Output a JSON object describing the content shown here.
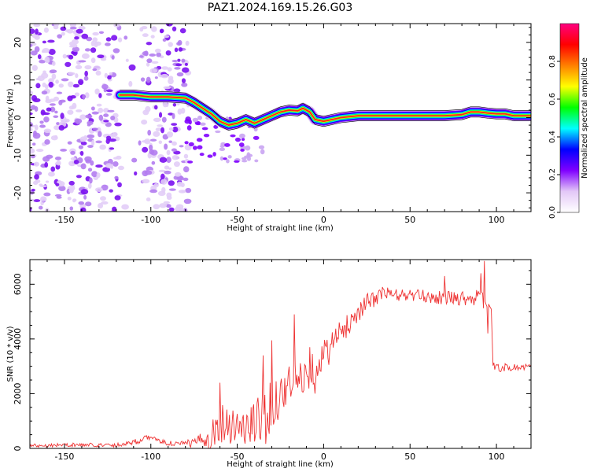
{
  "title": "PAZ1.2024.169.15.26.G03",
  "colors": {
    "snr_line": "#ee3333",
    "ridge_core": "#ff2020",
    "noise_scatter": "#8a2be2"
  },
  "chart_data": [
    {
      "type": "heatmap",
      "title": "PAZ1.2024.169.15.26.G03",
      "xlabel": "Height of straight line (km)",
      "ylabel": "Frequency (Hz)",
      "xlim": [
        -170,
        120
      ],
      "ylim": [
        -25,
        25
      ],
      "x_ticks": [
        -150,
        -100,
        -50,
        0,
        50,
        100
      ],
      "y_ticks": [
        -20,
        -10,
        0,
        10,
        20
      ],
      "ridge": {
        "x": [
          -118,
          -110,
          -100,
          -90,
          -80,
          -75,
          -70,
          -65,
          -60,
          -55,
          -50,
          -45,
          -40,
          -35,
          -30,
          -25,
          -20,
          -15,
          -12,
          -8,
          -5,
          0,
          5,
          10,
          20,
          30,
          40,
          50,
          60,
          70,
          80,
          85,
          90,
          95,
          100,
          105,
          110,
          115,
          120
        ],
        "y": [
          6,
          6,
          5.5,
          5.5,
          5.2,
          4,
          2.5,
          1,
          -1,
          -2,
          -1.5,
          -0.5,
          -1.5,
          -0.5,
          0.5,
          1.5,
          2,
          1.8,
          2.5,
          1.5,
          -0.5,
          -1,
          -0.5,
          0,
          0.5,
          0.5,
          0.5,
          0.5,
          0.5,
          0.5,
          0.8,
          1.5,
          1.5,
          1.2,
          1,
          1,
          0.5,
          0.5,
          0.5
        ]
      },
      "noise_x_range": [
        -170,
        -78
      ],
      "colorbar": {
        "label": "Normalized spectral amplitude",
        "range": [
          0,
          1
        ],
        "ticks": [
          "0.0",
          "0.2",
          "0.4",
          "0.6",
          "0.8"
        ],
        "colors": [
          "#ffffff",
          "#e3c8f7",
          "#8000ff",
          "#0000ff",
          "#00ffff",
          "#00ff00",
          "#ffff00",
          "#ff8000",
          "#ff0000",
          "#ff0080"
        ]
      }
    },
    {
      "type": "line",
      "xlabel": "Height of straight line (km)",
      "ylabel": "SNR (10 * v/v)",
      "xlim": [
        -170,
        120
      ],
      "ylim": [
        0,
        6900
      ],
      "x_ticks": [
        -150,
        -100,
        -50,
        0,
        50,
        100
      ],
      "y_ticks": [
        0,
        2000,
        4000,
        6000
      ],
      "series": [
        {
          "trend_x": [
            -170,
            -150,
            -120,
            -105,
            -100,
            -95,
            -85,
            -75,
            -70,
            -65,
            -60,
            -55,
            -50,
            -45,
            -40,
            -35,
            -30,
            -25,
            -20,
            -15,
            -10,
            -5,
            0,
            5,
            10,
            15,
            20,
            25,
            30,
            35,
            40,
            50,
            60,
            70,
            80,
            90,
            95,
            97,
            98,
            100,
            110,
            120
          ],
          "trend_y": [
            100,
            130,
            120,
            300,
            450,
            250,
            150,
            200,
            350,
            500,
            900,
            1000,
            800,
            700,
            900,
            1100,
            1500,
            2000,
            2300,
            2500,
            2700,
            3000,
            3400,
            3800,
            4200,
            4600,
            5000,
            5300,
            5500,
            5700,
            5600,
            5600,
            5550,
            5500,
            5500,
            5500,
            5300,
            5200,
            3000,
            2950,
            2950,
            3000
          ],
          "spread_x": [
            -170,
            -120,
            -105,
            -95,
            -80,
            -70,
            -65,
            -55,
            -45,
            -35,
            -25,
            -15,
            -5,
            5,
            15,
            25,
            35,
            50,
            70,
            90,
            96,
            98,
            120
          ],
          "spread": [
            70,
            70,
            120,
            80,
            120,
            250,
            700,
            800,
            700,
            1100,
            800,
            700,
            600,
            600,
            400,
            350,
            250,
            220,
            250,
            300,
            350,
            150,
            150
          ],
          "spikes": [
            [
              93,
              6850
            ],
            [
              91,
              6400
            ],
            [
              95,
              4200
            ],
            [
              -17,
              4900
            ],
            [
              -30,
              3950
            ],
            [
              -8,
              3700
            ],
            [
              70,
              6300
            ],
            [
              -35,
              3400
            ],
            [
              -60,
              2400
            ],
            [
              -5,
              2000
            ]
          ]
        }
      ]
    }
  ]
}
